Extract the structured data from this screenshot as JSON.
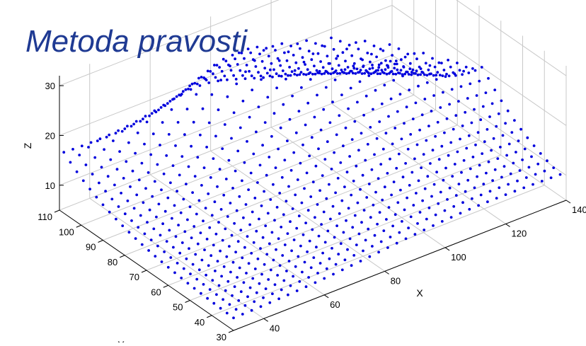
{
  "slide": {
    "title": "Metoda pravosti"
  },
  "colors": {
    "points": "#0000dd",
    "grid": "#c8c8c8",
    "axes": "#000000",
    "title": "#1f3a93"
  },
  "chart_data": {
    "type": "scatter3d",
    "marker": "dot",
    "grid": true,
    "xlabel": "X",
    "ylabel": "Y",
    "zlabel": "Z",
    "xlim": [
      30,
      140
    ],
    "ylim": [
      30,
      110
    ],
    "zlim": [
      5,
      32
    ],
    "x_ticks": [
      40,
      60,
      80,
      100,
      120,
      140
    ],
    "y_ticks": [
      30,
      40,
      50,
      60,
      70,
      80,
      90,
      100,
      110
    ],
    "z_ticks": [
      10,
      20,
      30
    ],
    "x_tick_labels": [
      "40",
      "60",
      "80",
      "100",
      "120",
      "140"
    ],
    "y_tick_labels": [
      "30",
      "40",
      "50",
      "60",
      "70",
      "80",
      "90",
      "100",
      "110"
    ],
    "z_tick_labels": [
      "10",
      "20",
      "30"
    ],
    "x_step": 3,
    "y_step": 3,
    "surface_model": {
      "base_z": 7,
      "ridge": {
        "y0": 108,
        "y1": 65,
        "x0": 30,
        "x1": 140,
        "center_x": 95,
        "peak_z": 32,
        "width_x": 42,
        "falloff_y": 26
      },
      "bump": {
        "x": 75,
        "y": 95,
        "z": 4,
        "width": 15
      }
    }
  }
}
